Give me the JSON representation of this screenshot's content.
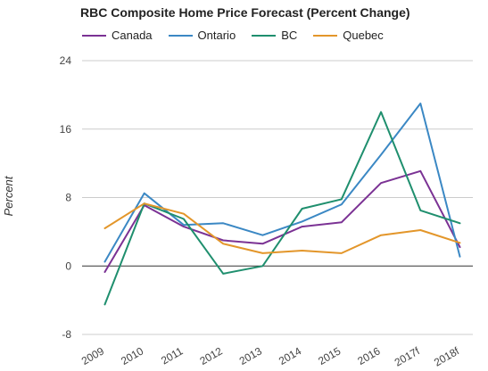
{
  "chart_data": {
    "type": "line",
    "title": "RBC Composite Home Price Forecast (Percent Change)",
    "ylabel": "Percent",
    "xlabel": "",
    "ylim": [
      -8,
      24
    ],
    "yticks": [
      "-8",
      "0",
      "8",
      "16",
      "24"
    ],
    "categories": [
      "2009",
      "2010",
      "2011",
      "2012",
      "2013",
      "2014",
      "2015",
      "2016",
      "2017f",
      "2018f"
    ],
    "legend_position": "top",
    "grid": "horizontal",
    "series": [
      {
        "name": "Canada",
        "color": "#7b3294",
        "values": [
          -0.7,
          7.1,
          4.6,
          3.0,
          2.6,
          4.6,
          5.1,
          9.7,
          11.1,
          2.2
        ]
      },
      {
        "name": "Ontario",
        "color": "#3b88c4",
        "values": [
          0.5,
          8.5,
          4.8,
          5.0,
          3.6,
          5.2,
          7.2,
          13.0,
          19.0,
          1.1
        ]
      },
      {
        "name": "BC",
        "color": "#1f8f6e",
        "values": [
          -4.5,
          7.3,
          5.5,
          -0.9,
          0.0,
          6.7,
          7.8,
          18.0,
          6.5,
          5.0
        ]
      },
      {
        "name": "Quebec",
        "color": "#e3962a",
        "values": [
          4.4,
          7.3,
          6.1,
          2.6,
          1.5,
          1.8,
          1.5,
          3.6,
          4.2,
          2.7
        ]
      }
    ]
  }
}
